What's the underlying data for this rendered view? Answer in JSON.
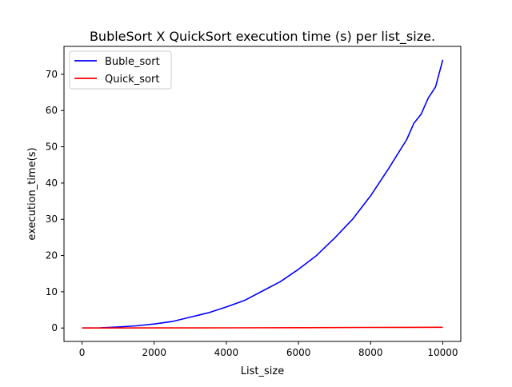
{
  "chart_data": {
    "type": "line",
    "title": "BubleSort X QuickSort execution time (s) per list_size.",
    "xlabel": "List_size",
    "ylabel": "execution_time(s)",
    "xlim": [
      -500,
      10500
    ],
    "ylim": [
      -3.7,
      77.7
    ],
    "xticks": [
      0,
      2000,
      4000,
      6000,
      8000,
      10000
    ],
    "yticks": [
      0,
      10,
      20,
      30,
      40,
      50,
      60,
      70
    ],
    "grid": false,
    "legend": "top-left",
    "series": [
      {
        "name": "Buble_sort",
        "color": "#0000ff",
        "x": [
          0,
          500,
          1000,
          1500,
          2000,
          2500,
          3000,
          3500,
          4000,
          4500,
          5000,
          5500,
          6000,
          6500,
          7000,
          7500,
          8000,
          8500,
          9000,
          9200,
          9400,
          9600,
          9800,
          10000
        ],
        "y": [
          0,
          0.05,
          0.3,
          0.6,
          1.1,
          1.8,
          3.0,
          4.2,
          5.8,
          7.6,
          10.2,
          12.8,
          16.2,
          20.0,
          24.8,
          30.0,
          36.5,
          44.0,
          52.0,
          56.5,
          59.0,
          63.5,
          66.5,
          74.0
        ]
      },
      {
        "name": "Quick_sort",
        "color": "#ff0000",
        "x": [
          0,
          2000,
          4000,
          6000,
          8000,
          10000
        ],
        "y": [
          0,
          0.02,
          0.05,
          0.1,
          0.15,
          0.2
        ]
      }
    ]
  }
}
